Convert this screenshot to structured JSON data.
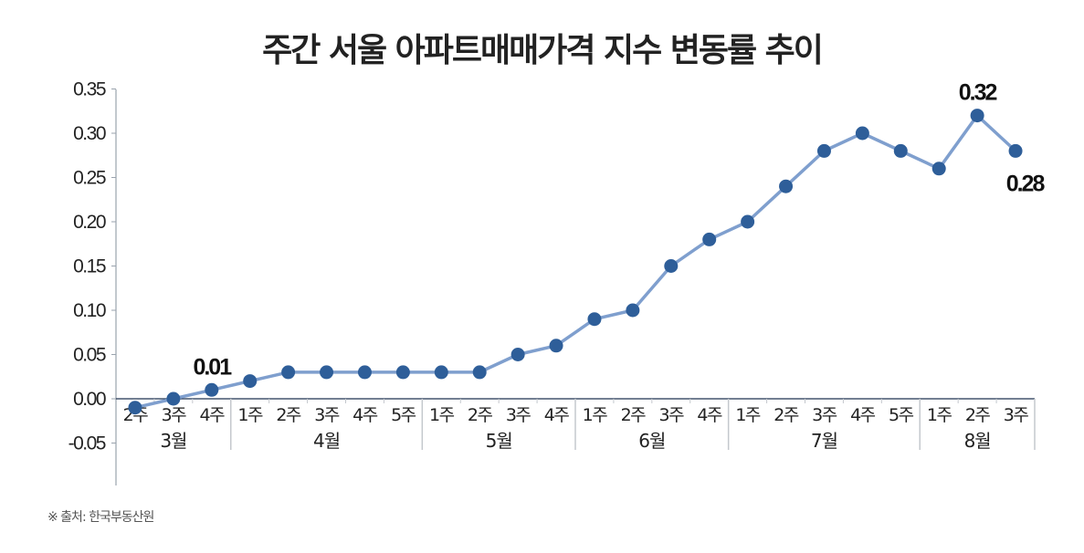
{
  "title": "주간 서울 아파트매매가격 지수 변동률 추이",
  "source": "※ 출처: 한국부동산원",
  "colors": {
    "line": "#7f9fce",
    "marker": "#2e5e99",
    "axis": "#9aa3ad",
    "zero_line": "#1f3350",
    "separator": "#c4c8cd"
  },
  "chart_data": {
    "type": "line",
    "title": "주간 서울 아파트매매가격 지수 변동률 추이",
    "xlabel": "",
    "ylabel": "",
    "ylim": [
      -0.1,
      0.35
    ],
    "yticks": [
      "0.35",
      "0.30",
      "0.25",
      "0.20",
      "0.15",
      "0.10",
      "0.05",
      "0.00",
      "-0.05"
    ],
    "ytick_values": [
      0.35,
      0.3,
      0.25,
      0.2,
      0.15,
      0.1,
      0.05,
      0.0,
      -0.05
    ],
    "grid": false,
    "legend": null,
    "groups": [
      {
        "label": "3월",
        "weeks": [
          "2주",
          "3주",
          "4주"
        ]
      },
      {
        "label": "4월",
        "weeks": [
          "1주",
          "2주",
          "3주",
          "4주",
          "5주"
        ]
      },
      {
        "label": "5월",
        "weeks": [
          "1주",
          "2주",
          "3주",
          "4주"
        ]
      },
      {
        "label": "6월",
        "weeks": [
          "1주",
          "2주",
          "3주",
          "4주"
        ]
      },
      {
        "label": "7월",
        "weeks": [
          "1주",
          "2주",
          "3주",
          "4주",
          "5주"
        ]
      },
      {
        "label": "8월",
        "weeks": [
          "1주",
          "2주",
          "3주"
        ]
      }
    ],
    "categories": [
      "3월 2주",
      "3월 3주",
      "3월 4주",
      "4월 1주",
      "4월 2주",
      "4월 3주",
      "4월 4주",
      "4월 5주",
      "5월 1주",
      "5월 2주",
      "5월 3주",
      "5월 4주",
      "6월 1주",
      "6월 2주",
      "6월 3주",
      "6월 4주",
      "7월 1주",
      "7월 2주",
      "7월 3주",
      "7월 4주",
      "7월 5주",
      "8월 1주",
      "8월 2주",
      "8월 3주"
    ],
    "series": [
      {
        "name": "서울 아파트매매가격 지수 변동률",
        "values": [
          -0.01,
          0.0,
          0.01,
          0.02,
          0.03,
          0.03,
          0.03,
          0.03,
          0.03,
          0.03,
          0.05,
          0.06,
          0.09,
          0.1,
          0.15,
          0.18,
          0.2,
          0.24,
          0.28,
          0.3,
          0.28,
          0.26,
          0.32,
          0.28
        ]
      }
    ],
    "annotations": [
      {
        "index": 2,
        "text": "0.01",
        "position": "above"
      },
      {
        "index": 22,
        "text": "0.32",
        "position": "above"
      },
      {
        "index": 23,
        "text": "0.28",
        "position": "below"
      }
    ]
  }
}
